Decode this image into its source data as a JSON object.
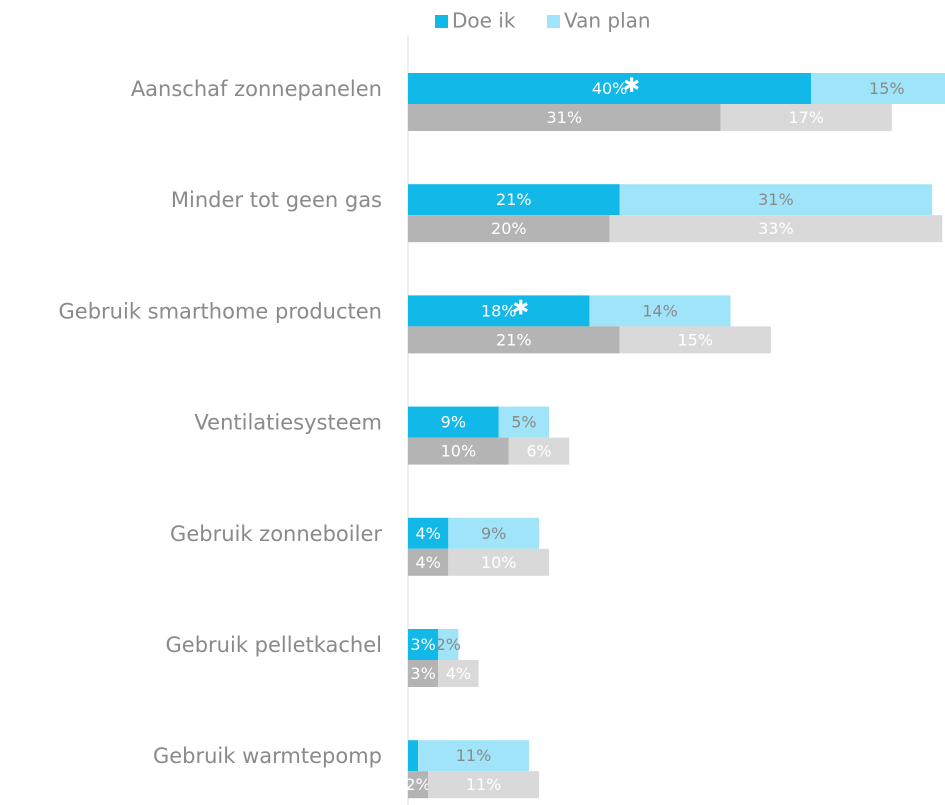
{
  "chart_data": {
    "type": "stacked-bar-horizontal",
    "categories": [
      "Aanschaf zonnepanelen",
      "Minder tot geen gas",
      "Gebruik smarthome producten",
      "Ventilatiesysteem",
      "Gebruik zonneboiler",
      "Gebruik pelletkachel",
      "Gebruik warmtepomp"
    ],
    "series": [
      {
        "name": "Doe ik",
        "color": "#12b8e8",
        "values": [
          40,
          21,
          18,
          9,
          4,
          3,
          1
        ],
        "value_labels": [
          "40%",
          "21%",
          "18%",
          "9%",
          "4%",
          "3%",
          null
        ]
      },
      {
        "name": "Van plan",
        "color": "#9fe4f8",
        "values": [
          15,
          31,
          14,
          5,
          9,
          2,
          11
        ],
        "value_labels": [
          "15%",
          "31%",
          "14%",
          "5%",
          "9%",
          "2%",
          "11%"
        ]
      },
      {
        "color": "#b4b4b4",
        "values": [
          31,
          20,
          21,
          10,
          4,
          3,
          2
        ],
        "value_labels": [
          "31%",
          "20%",
          "21%",
          "10%",
          "4%",
          "3%",
          "2%"
        ]
      },
      {
        "color": "#d9d9d9",
        "values": [
          17,
          33,
          15,
          6,
          10,
          4,
          11
        ],
        "value_labels": [
          "17%",
          "33%",
          "15%",
          "6%",
          "10%",
          "4%",
          "11%"
        ]
      }
    ],
    "annotations": [
      {
        "text": "✱",
        "category": 0
      },
      {
        "text": "✱",
        "category": 2
      }
    ],
    "legend": "top"
  }
}
